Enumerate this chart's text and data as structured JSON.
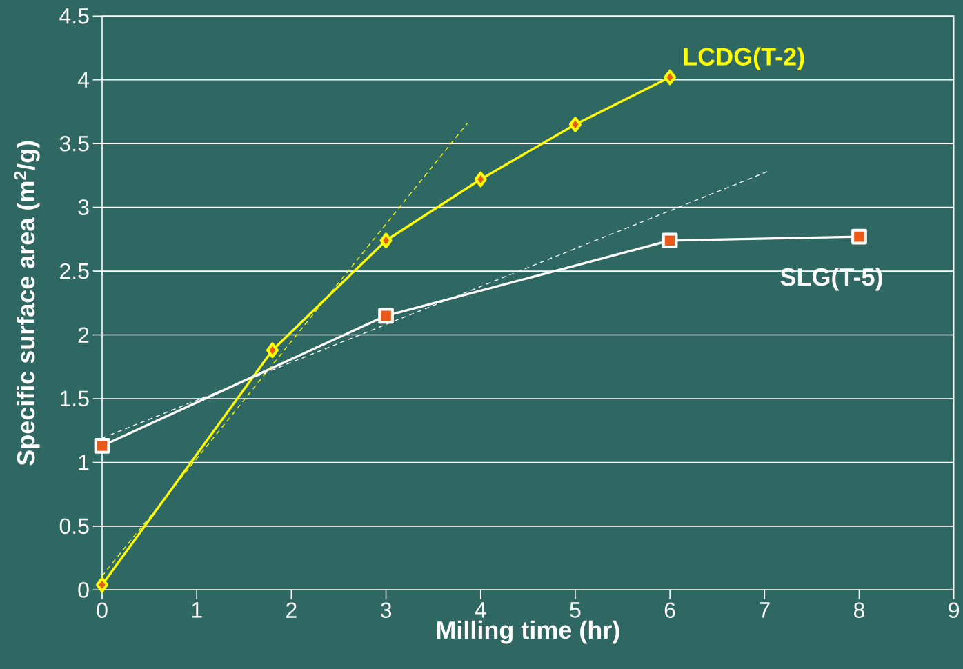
{
  "chart_data": {
    "type": "line",
    "xlabel": "Milling time (hr)",
    "ylabel": "Specific surface area (m$^{2}$/g)",
    "xlim": [
      0,
      9
    ],
    "xticks": [
      0,
      1,
      2,
      3,
      4,
      5,
      6,
      7,
      8,
      9
    ],
    "ylim": [
      0,
      4.5
    ],
    "yticks": [
      0,
      0.5,
      1,
      1.5,
      2,
      2.5,
      3,
      3.5,
      4,
      4.5
    ],
    "grid": "y",
    "series": [
      {
        "name": "LCDG(T-2)",
        "color": "#ffff00",
        "x": [
          0,
          1.8,
          3,
          4,
          5,
          6
        ],
        "values": [
          0.04,
          1.88,
          2.74,
          3.22,
          3.65,
          4.02
        ],
        "marker": "diamond",
        "line_style": "solid"
      },
      {
        "name": "SLG(T-5)",
        "color": "#ffffff",
        "x": [
          0,
          3,
          6,
          8
        ],
        "values": [
          1.13,
          2.15,
          2.74,
          2.77
        ],
        "marker": "square",
        "line_style": "solid"
      },
      {
        "type": "line",
        "color": "#ffff00",
        "x": [
          0,
          3.86
        ],
        "values": [
          0.11,
          3.66
        ],
        "marker": "none",
        "line_style": "dashed"
      },
      {
        "type": "line",
        "color": "#ffffff",
        "x": [
          0,
          7.03
        ],
        "values": [
          1.19,
          3.28
        ],
        "marker": "none",
        "line_style": "dashed"
      }
    ]
  }
}
